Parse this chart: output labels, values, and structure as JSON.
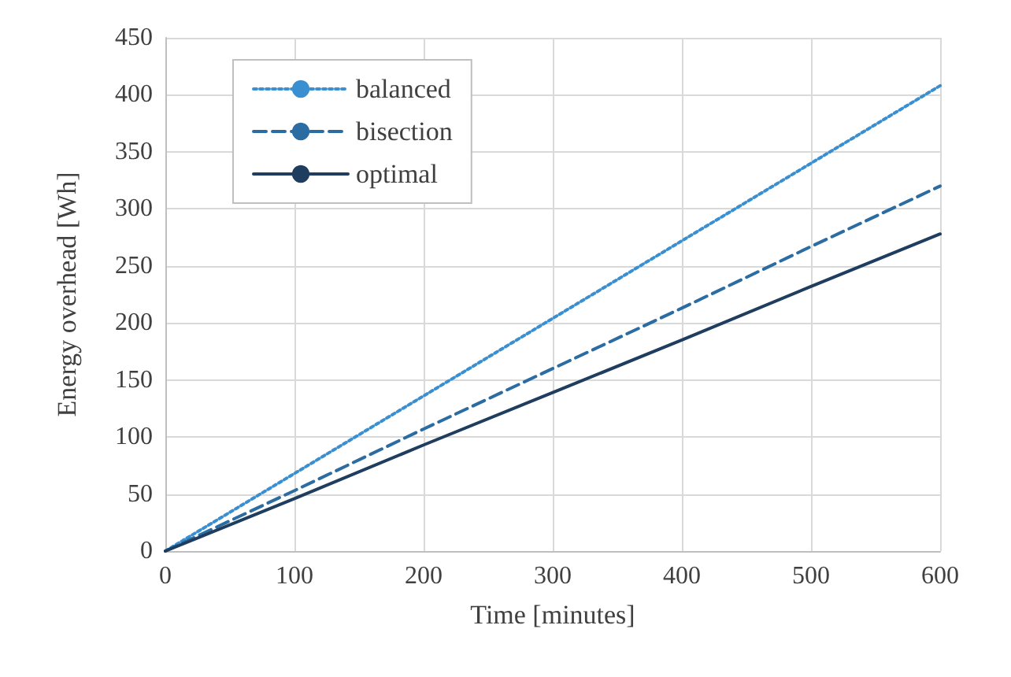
{
  "chart_data": {
    "type": "line",
    "xlabel": "Time [minutes]",
    "ylabel": "Energy overhead [Wh]",
    "x": [
      0,
      100,
      200,
      300,
      400,
      500,
      600
    ],
    "series": [
      {
        "name": "balanced",
        "color": "#3a8fd0",
        "line_style": "dotted",
        "values": [
          0,
          68,
          136,
          204,
          272,
          340,
          408
        ]
      },
      {
        "name": "bisection",
        "color": "#2b6ca3",
        "line_style": "dashed",
        "values": [
          0,
          53,
          107,
          160,
          213,
          267,
          320
        ]
      },
      {
        "name": "optimal",
        "color": "#1f3d5e",
        "line_style": "solid",
        "values": [
          0,
          46,
          93,
          139,
          185,
          232,
          278
        ]
      }
    ],
    "xlim": [
      0,
      600
    ],
    "xticks": [
      0,
      100,
      200,
      300,
      400,
      500,
      600
    ],
    "ylim": [
      0,
      450
    ],
    "yticks": [
      0,
      50,
      100,
      150,
      200,
      250,
      300,
      350,
      400,
      450
    ],
    "grid": true,
    "legend": "top left",
    "marker": "none"
  }
}
